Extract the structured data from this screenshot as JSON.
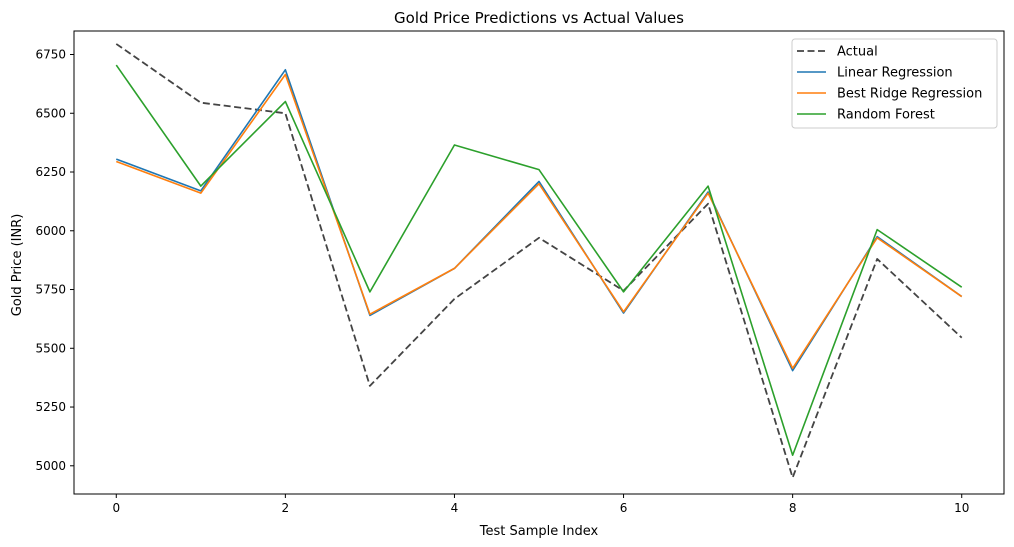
{
  "chart_data": {
    "type": "line",
    "title": "Gold Price Predictions vs Actual Values",
    "xlabel": "Test Sample Index",
    "ylabel": "Gold Price (INR)",
    "x": [
      0,
      1,
      2,
      3,
      4,
      5,
      6,
      7,
      8,
      9,
      10
    ],
    "xlim": [
      -0.5,
      10.5
    ],
    "ylim": [
      4880,
      6850
    ],
    "xticks": [
      0,
      2,
      4,
      6,
      8,
      10
    ],
    "yticks": [
      5000,
      5250,
      5500,
      5750,
      6000,
      6250,
      6500,
      6750
    ],
    "grid": false,
    "legend_position": "top-right",
    "series": [
      {
        "name": "Actual",
        "color": "#444444",
        "dashed": true,
        "values": [
          6795,
          6545,
          6500,
          5340,
          5710,
          5970,
          5745,
          6115,
          4950,
          5880,
          5545
        ]
      },
      {
        "name": "Linear Regression",
        "color": "#1f77b4",
        "dashed": false,
        "values": [
          6305,
          6170,
          6685,
          5640,
          5840,
          6210,
          5650,
          6165,
          5405,
          5975,
          5720
        ]
      },
      {
        "name": "Best Ridge Regression",
        "color": "#ff7f0e",
        "dashed": false,
        "values": [
          6295,
          6160,
          6665,
          5645,
          5840,
          6200,
          5655,
          6160,
          5415,
          5970,
          5720
        ]
      },
      {
        "name": "Random Forest",
        "color": "#2ca02c",
        "dashed": false,
        "values": [
          6705,
          6190,
          6550,
          5740,
          6365,
          6260,
          5740,
          6190,
          5045,
          6005,
          5760
        ]
      }
    ]
  }
}
